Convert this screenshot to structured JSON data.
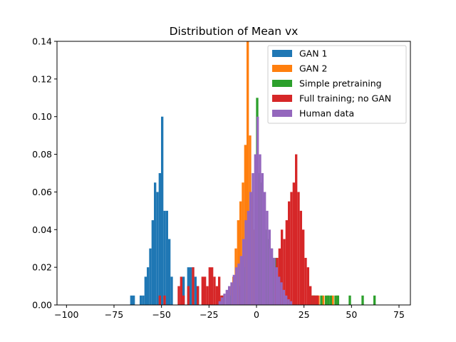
{
  "chart_data": {
    "type": "bar",
    "subtype": "histogram",
    "title": "Distribution of Mean vx",
    "xlabel": "",
    "ylabel": "",
    "xlim": [
      -105,
      81
    ],
    "ylim": [
      0,
      0.14
    ],
    "xticks": [
      -100,
      -75,
      -50,
      -25,
      0,
      25,
      50,
      75
    ],
    "xtick_labels": [
      "−100",
      "−75",
      "−50",
      "−25",
      "0",
      "25",
      "50",
      "75"
    ],
    "yticks": [
      0.0,
      0.02,
      0.04,
      0.06,
      0.08,
      0.1,
      0.12,
      0.14
    ],
    "ytick_labels": [
      "0.00",
      "0.02",
      "0.04",
      "0.06",
      "0.08",
      "0.10",
      "0.12",
      "0.14"
    ],
    "grid": false,
    "legend_position": "top-right",
    "bin_width": 1.25,
    "series": [
      {
        "name": "GAN 1",
        "color": "#1f77b4",
        "bins": [
          [
            -66.5,
            0.005
          ],
          [
            -65.25,
            0.005
          ],
          [
            -61.5,
            0.005
          ],
          [
            -60.25,
            0.005
          ],
          [
            -59,
            0.015
          ],
          [
            -57.75,
            0.02
          ],
          [
            -56.5,
            0.03
          ],
          [
            -55.25,
            0.045
          ],
          [
            -54,
            0.065
          ],
          [
            -52.75,
            0.06
          ],
          [
            -51.5,
            0.07
          ],
          [
            -50.25,
            0.1
          ],
          [
            -49,
            0.05
          ],
          [
            -47.75,
            0.05
          ],
          [
            -46.5,
            0.035
          ],
          [
            -45.25,
            0.015
          ],
          [
            -39,
            0.015
          ],
          [
            -36.5,
            0.02
          ],
          [
            -35.25,
            0.02
          ],
          [
            -34,
            0.02
          ],
          [
            -32.75,
            0.015
          ],
          [
            -31.5,
            0.01
          ]
        ]
      },
      {
        "name": "GAN 2",
        "color": "#ff7f0e",
        "bins": [
          [
            -15.25,
            0.005
          ],
          [
            -14,
            0.01
          ],
          [
            -12.75,
            0.015
          ],
          [
            -11.5,
            0.03
          ],
          [
            -10.25,
            0.045
          ],
          [
            -9,
            0.055
          ],
          [
            -7.75,
            0.065
          ],
          [
            -6.5,
            0.085
          ],
          [
            -5.25,
            0.145
          ],
          [
            -4,
            0.09
          ],
          [
            -2.75,
            0.06
          ],
          [
            -1.5,
            0.04
          ],
          [
            -0.25,
            0.03
          ],
          [
            1,
            0.02
          ],
          [
            2.25,
            0.015
          ],
          [
            3.5,
            0.01
          ],
          [
            29.5,
            0.005
          ],
          [
            32,
            0.005
          ],
          [
            34.5,
            0.005
          ],
          [
            37,
            0.005
          ],
          [
            39.5,
            0.005
          ],
          [
            42,
            0.005
          ]
        ]
      },
      {
        "name": "Simple pretraining",
        "color": "#2ca02c",
        "bins": [
          [
            -18.5,
            0.005
          ],
          [
            -14,
            0.005
          ],
          [
            -9.5,
            0.01
          ],
          [
            -7.5,
            0.02
          ],
          [
            -0.25,
            0.11
          ],
          [
            1,
            0.07
          ],
          [
            2.25,
            0.065
          ],
          [
            3.5,
            0.055
          ],
          [
            4.75,
            0.04
          ],
          [
            6,
            0.035
          ],
          [
            7.25,
            0.03
          ],
          [
            8.5,
            0.025
          ],
          [
            9.75,
            0.025
          ],
          [
            11,
            0.015
          ],
          [
            12.25,
            0.01
          ],
          [
            13.5,
            0.005
          ],
          [
            28.5,
            0.005
          ],
          [
            29.75,
            0.005
          ],
          [
            31,
            0.005
          ],
          [
            33.5,
            0.005
          ],
          [
            36,
            0.005
          ],
          [
            37.25,
            0.005
          ],
          [
            38.5,
            0.005
          ],
          [
            41,
            0.005
          ],
          [
            42.25,
            0.005
          ],
          [
            48.5,
            0.005
          ],
          [
            55.25,
            0.005
          ],
          [
            61.5,
            0.005
          ]
        ]
      },
      {
        "name": "Full training; no GAN",
        "color": "#d62728",
        "bins": [
          [
            -51.5,
            0.005
          ],
          [
            -49,
            0.005
          ],
          [
            -41.5,
            0.01
          ],
          [
            -40.25,
            0.015
          ],
          [
            -39,
            0.005
          ],
          [
            -36.5,
            0.01
          ],
          [
            -34,
            0.02
          ],
          [
            -31.5,
            0.01
          ],
          [
            -29,
            0.015
          ],
          [
            -27.75,
            0.015
          ],
          [
            -26.5,
            0.01
          ],
          [
            -25.25,
            0.02
          ],
          [
            -24,
            0.02
          ],
          [
            -22.75,
            0.015
          ],
          [
            -21.5,
            0.01
          ],
          [
            -20.25,
            0.015
          ],
          [
            -19,
            0.005
          ],
          [
            -17.75,
            0.005
          ],
          [
            -15.25,
            0.005
          ],
          [
            -11.5,
            0.015
          ],
          [
            -9,
            0.01
          ],
          [
            9,
            0.02
          ],
          [
            10.25,
            0.025
          ],
          [
            11.5,
            0.03
          ],
          [
            12.75,
            0.04
          ],
          [
            14,
            0.035
          ],
          [
            15.25,
            0.045
          ],
          [
            16.5,
            0.055
          ],
          [
            17.75,
            0.06
          ],
          [
            19,
            0.065
          ],
          [
            20.25,
            0.08
          ],
          [
            21.5,
            0.06
          ],
          [
            22.75,
            0.05
          ],
          [
            24,
            0.04
          ],
          [
            25.25,
            0.025
          ],
          [
            26.5,
            0.02
          ],
          [
            27.75,
            0.01
          ],
          [
            29,
            0.005
          ],
          [
            30.25,
            0.005
          ],
          [
            31.5,
            0.005
          ]
        ]
      },
      {
        "name": "Human data",
        "color": "#9467bd",
        "bins": [
          [
            -20,
            0.002
          ],
          [
            -18.75,
            0.004
          ],
          [
            -17.5,
            0.006
          ],
          [
            -16.25,
            0.008
          ],
          [
            -15,
            0.01
          ],
          [
            -13.75,
            0.012
          ],
          [
            -12.5,
            0.016
          ],
          [
            -11.25,
            0.02
          ],
          [
            -10,
            0.022
          ],
          [
            -8.75,
            0.026
          ],
          [
            -7.5,
            0.035
          ],
          [
            -6.25,
            0.045
          ],
          [
            -5,
            0.05
          ],
          [
            -3.75,
            0.06
          ],
          [
            -2.5,
            0.07
          ],
          [
            -1.25,
            0.08
          ],
          [
            0,
            0.1
          ],
          [
            1.25,
            0.08
          ],
          [
            2.5,
            0.07
          ],
          [
            3.75,
            0.06
          ],
          [
            5,
            0.05
          ],
          [
            6.25,
            0.04
          ],
          [
            7.5,
            0.03
          ],
          [
            8.75,
            0.025
          ],
          [
            10,
            0.02
          ],
          [
            11.25,
            0.015
          ],
          [
            12.5,
            0.012
          ],
          [
            13.75,
            0.008
          ],
          [
            15,
            0.005
          ],
          [
            16.25,
            0.003
          ],
          [
            17.5,
            0.002
          ]
        ]
      }
    ]
  }
}
